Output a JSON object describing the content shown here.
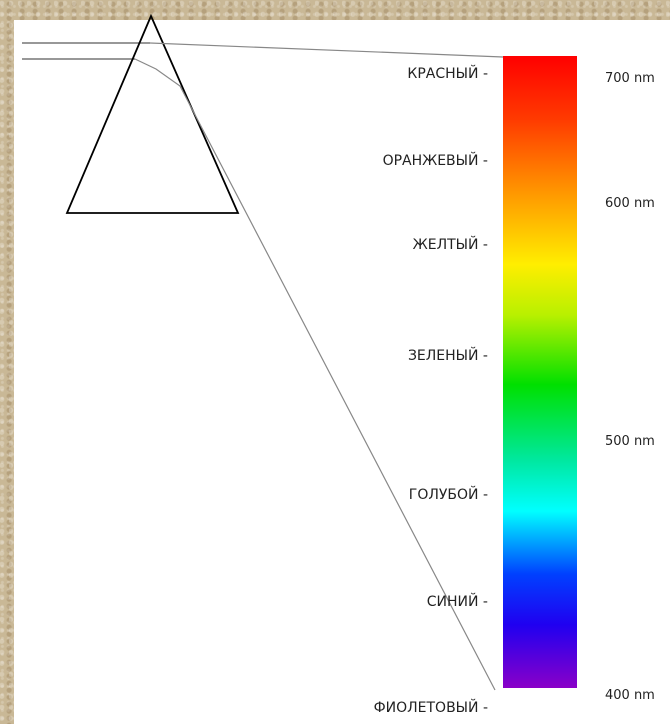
{
  "colors": [
    {
      "name": "КРАСНЫЙ -"
    },
    {
      "name": "ОРАНЖЕВЫЙ -"
    },
    {
      "name": "ЖЕЛТЫЙ -"
    },
    {
      "name": "ЗЕЛЕНЫЙ -"
    },
    {
      "name": "ГОЛУБОЙ -"
    },
    {
      "name": "СИНИЙ -"
    },
    {
      "name": "ФИОЛЕТОВЫЙ -"
    }
  ],
  "wavelengths": [
    {
      "label": "700 nm"
    },
    {
      "label": "600 nm"
    },
    {
      "label": "500 nm"
    },
    {
      "label": "400 nm"
    }
  ],
  "spectrum_colors": [
    "#ff0000",
    "#ff7a00",
    "#ffe600",
    "#00e000",
    "#00ffff",
    "#0000ff",
    "#8a00c8"
  ]
}
